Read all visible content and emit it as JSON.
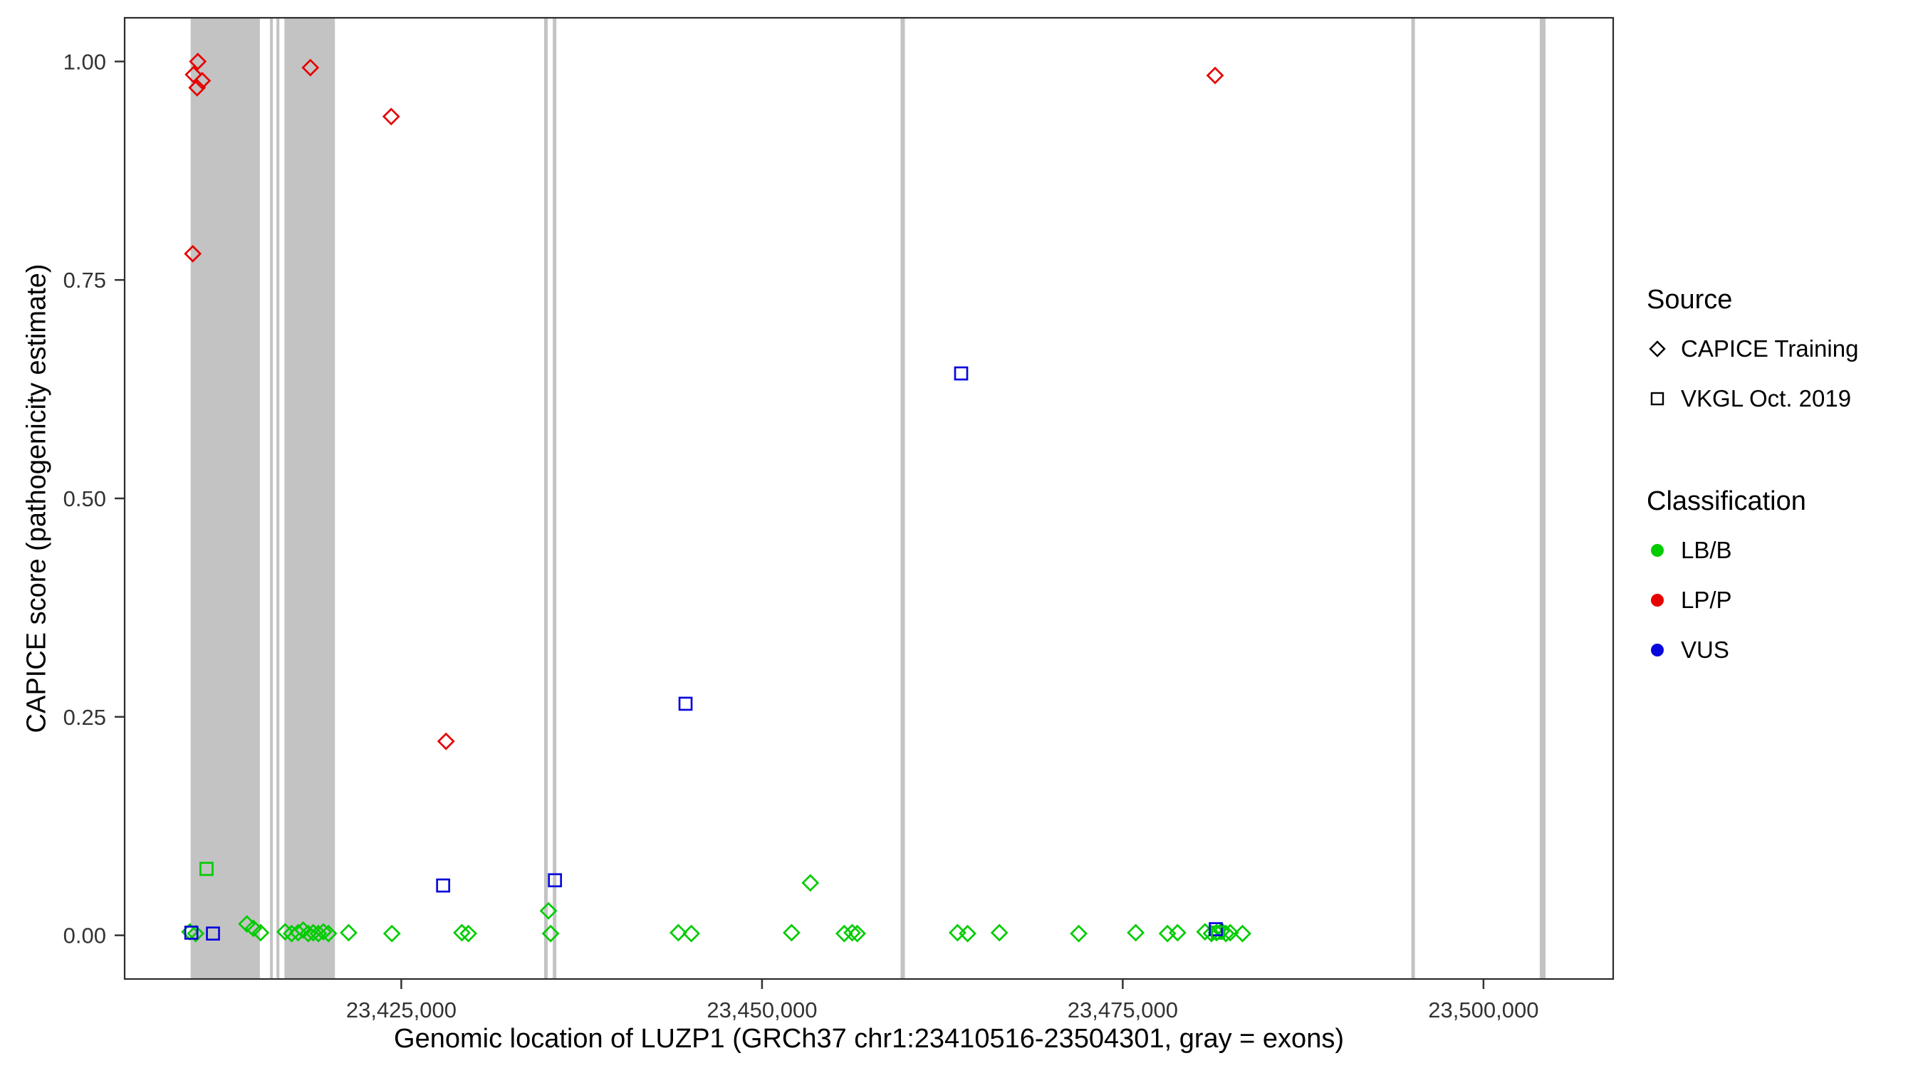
{
  "chart_data": {
    "type": "scatter",
    "title": "",
    "xlabel": "Genomic location of LUZP1 (GRCh37 chr1:23410516-23504301, gray = exons)",
    "ylabel": "CAPICE score (pathogenicity estimate)",
    "x_domain": [
      23405827,
      23508990
    ],
    "y_domain": [
      -0.05,
      1.05
    ],
    "x_ticks": [
      23425000,
      23450000,
      23475000,
      23500000
    ],
    "x_tick_labels": [
      "23,425,000",
      "23,450,000",
      "23,475,000",
      "23,500,000"
    ],
    "y_ticks": [
      0.0,
      0.25,
      0.5,
      0.75,
      1.0
    ],
    "y_tick_labels": [
      "0.00",
      "0.25",
      "0.50",
      "0.75",
      "1.00"
    ],
    "grid": false,
    "exon_color": "#c3c3c3",
    "colors": {
      "LB/B": "#00cc00",
      "LP/P": "#e60000",
      "VUS": "#0808dd"
    },
    "exons": [
      [
        23410400,
        23415200
      ],
      [
        23415900,
        23416100
      ],
      [
        23416350,
        23416550
      ],
      [
        23416900,
        23420400
      ],
      [
        23434900,
        23435150
      ],
      [
        23435500,
        23435750
      ],
      [
        23459600,
        23459900
      ],
      [
        23495000,
        23495250
      ],
      [
        23503900,
        23504300
      ]
    ],
    "series": [
      {
        "name": "CAPICE Training / LP/P",
        "source": "CAPICE Training",
        "classification": "LP/P",
        "marker": "diamond",
        "points": [
          [
            23410900,
            1.0
          ],
          [
            23410600,
            0.985
          ],
          [
            23411200,
            0.978
          ],
          [
            23410850,
            0.97
          ],
          [
            23418700,
            0.993
          ],
          [
            23424300,
            0.937
          ],
          [
            23410550,
            0.78
          ],
          [
            23428100,
            0.222
          ],
          [
            23481400,
            0.984
          ]
        ]
      },
      {
        "name": "CAPICE Training / LB/B",
        "source": "CAPICE Training",
        "classification": "LB/B",
        "marker": "diamond",
        "points": [
          [
            23410350,
            0.004
          ],
          [
            23410750,
            0.002
          ],
          [
            23414300,
            0.013
          ],
          [
            23414750,
            0.008
          ],
          [
            23415250,
            0.003
          ],
          [
            23416950,
            0.004
          ],
          [
            23417400,
            0.002
          ],
          [
            23417850,
            0.003
          ],
          [
            23418200,
            0.006
          ],
          [
            23418550,
            0.002
          ],
          [
            23418900,
            0.003
          ],
          [
            23419250,
            0.002
          ],
          [
            23419600,
            0.004
          ],
          [
            23419950,
            0.002
          ],
          [
            23421350,
            0.003
          ],
          [
            23424350,
            0.002
          ],
          [
            23429200,
            0.003
          ],
          [
            23429650,
            0.002
          ],
          [
            23435200,
            0.028
          ],
          [
            23435350,
            0.002
          ],
          [
            23444200,
            0.003
          ],
          [
            23445100,
            0.002
          ],
          [
            23452050,
            0.003
          ],
          [
            23453350,
            0.06
          ],
          [
            23455700,
            0.002
          ],
          [
            23456250,
            0.003
          ],
          [
            23456600,
            0.002
          ],
          [
            23463550,
            0.003
          ],
          [
            23464250,
            0.002
          ],
          [
            23466450,
            0.003
          ],
          [
            23471950,
            0.002
          ],
          [
            23475900,
            0.003
          ],
          [
            23478100,
            0.002
          ],
          [
            23478800,
            0.003
          ],
          [
            23480700,
            0.004
          ],
          [
            23481150,
            0.002
          ],
          [
            23481500,
            0.003
          ],
          [
            23481850,
            0.005
          ],
          [
            23482150,
            0.002
          ],
          [
            23482450,
            0.003
          ],
          [
            23483300,
            0.002
          ]
        ]
      },
      {
        "name": "VKGL Oct. 2019 / VUS",
        "source": "VKGL Oct. 2019",
        "classification": "VUS",
        "marker": "square",
        "points": [
          [
            23463800,
            0.643
          ],
          [
            23444700,
            0.265
          ],
          [
            23427900,
            0.057
          ],
          [
            23435650,
            0.063
          ],
          [
            23410450,
            0.003
          ],
          [
            23411950,
            0.002
          ],
          [
            23481450,
            0.007
          ]
        ]
      },
      {
        "name": "VKGL Oct. 2019 / LB/B",
        "source": "VKGL Oct. 2019",
        "classification": "LB/B",
        "marker": "square",
        "points": [
          [
            23411500,
            0.076
          ],
          [
            23481600,
            0.003
          ]
        ]
      }
    ]
  },
  "legend": {
    "source_title": "Source",
    "source_items": [
      {
        "label": "CAPICE Training",
        "marker": "diamond"
      },
      {
        "label": "VKGL Oct. 2019",
        "marker": "square"
      }
    ],
    "classification_title": "Classification",
    "classification_items": [
      {
        "label": "LB/B",
        "classification": "LB/B"
      },
      {
        "label": "LP/P",
        "classification": "LP/P"
      },
      {
        "label": "VUS",
        "classification": "VUS"
      }
    ]
  }
}
